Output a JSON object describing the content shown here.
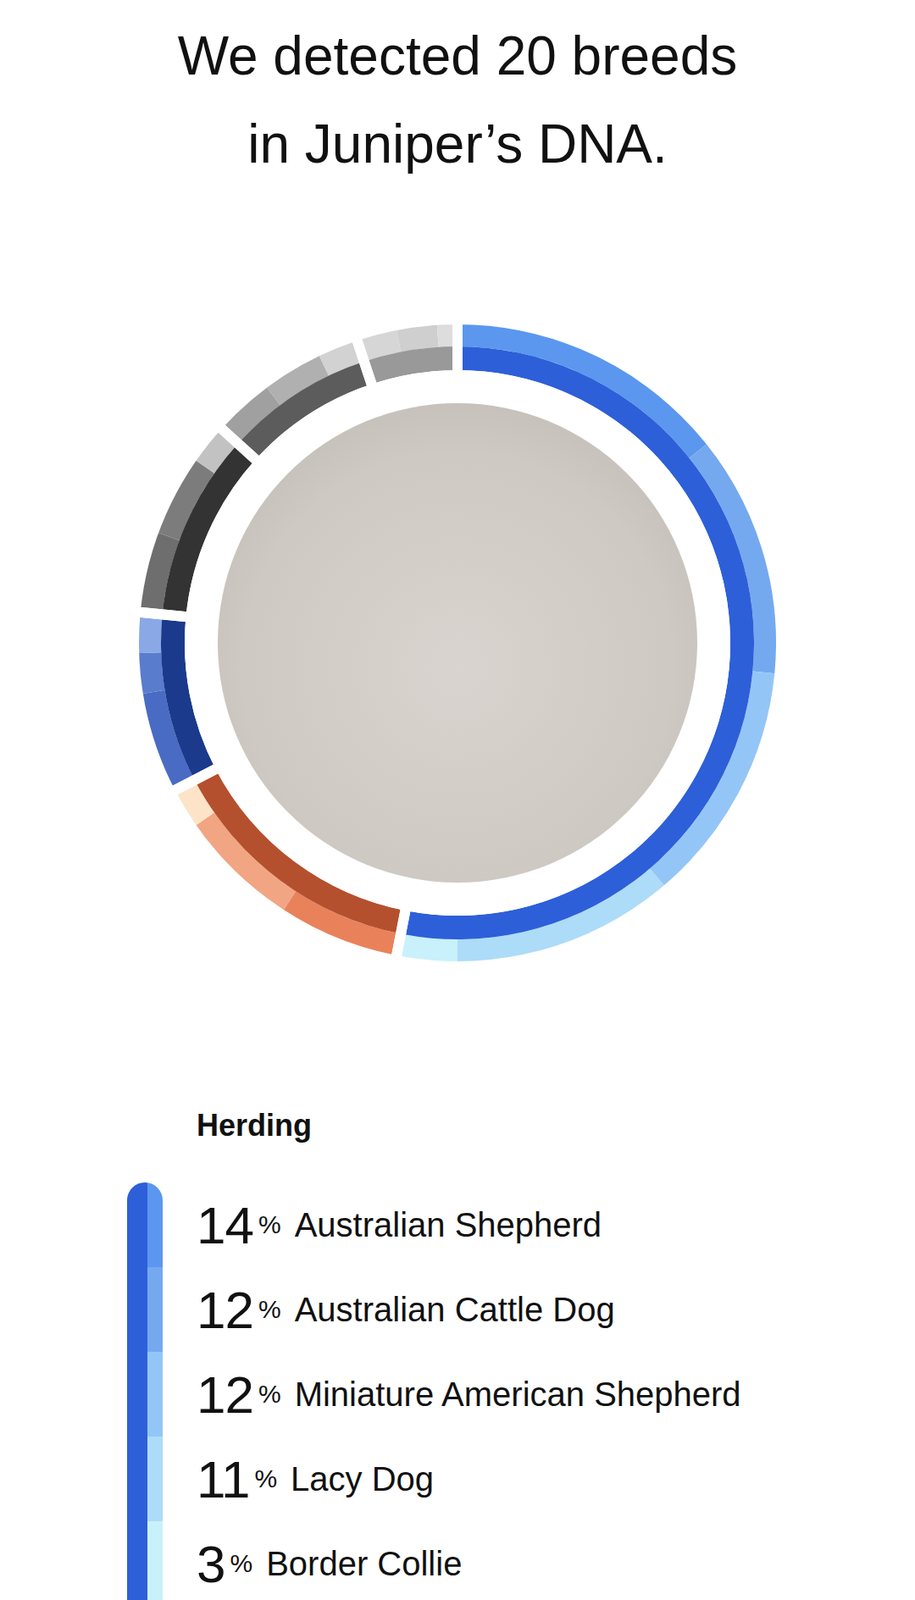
{
  "header": {
    "title": [
      "We detected 20 breeds",
      "in Juniper’s DNA."
    ]
  },
  "chart_data": {
    "type": "donut",
    "groups": [
      {
        "name": "Herding",
        "color": "#2d5fd9",
        "categories": [
          "Australian Shepherd",
          "Australian Cattle Dog",
          "Miniature American Shepherd",
          "Lacy Dog",
          "Border Collie"
        ],
        "values": [
          14,
          12,
          12,
          11,
          3
        ],
        "colors": [
          "#5b97ee",
          "#74a9f0",
          "#93c6f6",
          "#acdcf8",
          "#c9f1fb"
        ]
      },
      {
        "name": null,
        "color": "#b5502e",
        "categories": [
          null,
          null,
          null
        ],
        "values": [
          6,
          6,
          2
        ],
        "colors": [
          "#e9825a",
          "#f2a582",
          "#fde4c8"
        ]
      },
      {
        "name": null,
        "color": "#1b3a8c",
        "categories": [
          null,
          null,
          null
        ],
        "values": [
          5,
          2,
          2
        ],
        "colors": [
          "#4a6bc3",
          "#5a7ccd",
          "#8aa8e6"
        ]
      },
      {
        "name": null,
        "color": "#333333",
        "categories": [
          null,
          null,
          null
        ],
        "values": [
          4,
          4,
          2
        ],
        "colors": [
          "#6e6e6e",
          "#7c7c7c",
          "#c2c2c2"
        ]
      },
      {
        "name": null,
        "color": "#5c5c5c",
        "categories": [
          null,
          null,
          null
        ],
        "values": [
          3,
          3,
          2
        ],
        "colors": [
          "#a0a0a0",
          "#b0b0b0",
          "#d2d2d2"
        ]
      },
      {
        "name": null,
        "color": "#999999",
        "categories": [
          null,
          null,
          null
        ],
        "values": [
          2,
          2,
          1
        ],
        "colors": [
          "#d6d6d6",
          "#cfcfcf",
          "#dddddd"
        ]
      }
    ]
  },
  "list": {
    "group": "Herding",
    "unit": "%"
  }
}
